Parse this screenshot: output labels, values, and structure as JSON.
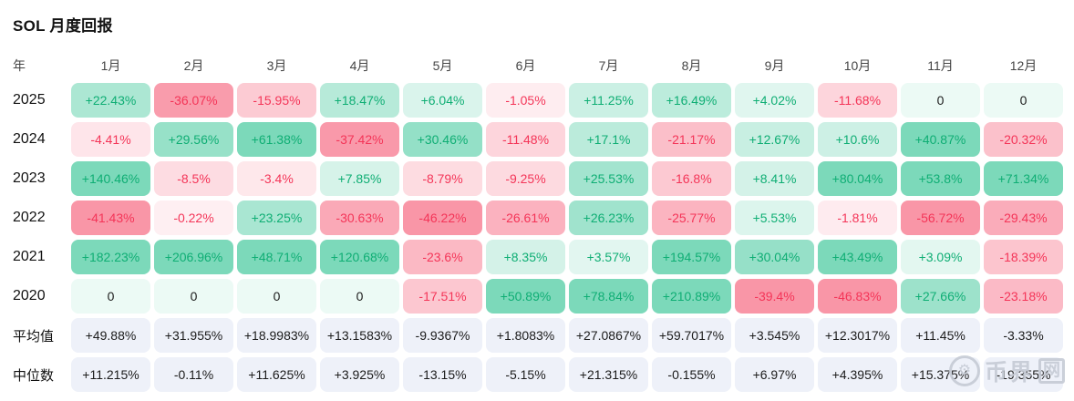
{
  "page_title": "SOL 月度回报",
  "colors": {
    "positive_text": "#0fae74",
    "negative_text": "#f43558",
    "neutral_text": "#1b1b1b",
    "green_base": "16,185,129",
    "red_base": "244,63,94",
    "stats_bg": "#eef1f9"
  },
  "watermark": {
    "icon": "coin-gear-icon",
    "text": "币界",
    "boxed": "网"
  },
  "chart_data": {
    "type": "heatmap",
    "title": "SOL 月度回报",
    "row_header": "年",
    "columns": [
      "1月",
      "2月",
      "3月",
      "4月",
      "5月",
      "6月",
      "7月",
      "8月",
      "9月",
      "10月",
      "11月",
      "12月"
    ],
    "rows": [
      {
        "label": "2025",
        "kind": "year",
        "values": [
          "+22.43%",
          "-36.07%",
          "-15.95%",
          "+18.47%",
          "+6.04%",
          "-1.05%",
          "+11.25%",
          "+16.49%",
          "+4.02%",
          "-11.68%",
          "0",
          "0"
        ]
      },
      {
        "label": "2024",
        "kind": "year",
        "values": [
          "-4.41%",
          "+29.56%",
          "+61.38%",
          "-37.42%",
          "+30.46%",
          "-11.48%",
          "+17.1%",
          "-21.17%",
          "+12.67%",
          "+10.6%",
          "+40.87%",
          "-20.32%"
        ]
      },
      {
        "label": "2023",
        "kind": "year",
        "values": [
          "+140.46%",
          "-8.5%",
          "-3.4%",
          "+7.85%",
          "-8.79%",
          "-9.25%",
          "+25.53%",
          "-16.8%",
          "+8.41%",
          "+80.04%",
          "+53.8%",
          "+71.34%"
        ]
      },
      {
        "label": "2022",
        "kind": "year",
        "values": [
          "-41.43%",
          "-0.22%",
          "+23.25%",
          "-30.63%",
          "-46.22%",
          "-26.61%",
          "+26.23%",
          "-25.77%",
          "+5.53%",
          "-1.81%",
          "-56.72%",
          "-29.43%"
        ]
      },
      {
        "label": "2021",
        "kind": "year",
        "values": [
          "+182.23%",
          "+206.96%",
          "+48.71%",
          "+120.68%",
          "-23.6%",
          "+8.35%",
          "+3.57%",
          "+194.57%",
          "+30.04%",
          "+43.49%",
          "+3.09%",
          "-18.39%"
        ]
      },
      {
        "label": "2020",
        "kind": "year",
        "values": [
          "0",
          "0",
          "0",
          "0",
          "-17.51%",
          "+50.89%",
          "+78.84%",
          "+210.89%",
          "-39.4%",
          "-46.83%",
          "+27.66%",
          "-23.18%"
        ]
      },
      {
        "label": "平均值",
        "kind": "stat",
        "values": [
          "+49.88%",
          "+31.955%",
          "+18.9983%",
          "+13.1583%",
          "-9.9367%",
          "+1.8083%",
          "+27.0867%",
          "+59.7017%",
          "+3.545%",
          "+12.3017%",
          "+11.45%",
          "-3.33%"
        ]
      },
      {
        "label": "中位数",
        "kind": "stat",
        "values": [
          "+11.215%",
          "-0.11%",
          "+11.625%",
          "+3.925%",
          "-13.15%",
          "-5.15%",
          "+21.315%",
          "-0.155%",
          "+6.97%",
          "+4.395%",
          "+15.375%",
          "-19.355%"
        ]
      }
    ],
    "legend": "cell background intensity scales with |return|; green = positive, red = negative, lavender = stat rows"
  }
}
